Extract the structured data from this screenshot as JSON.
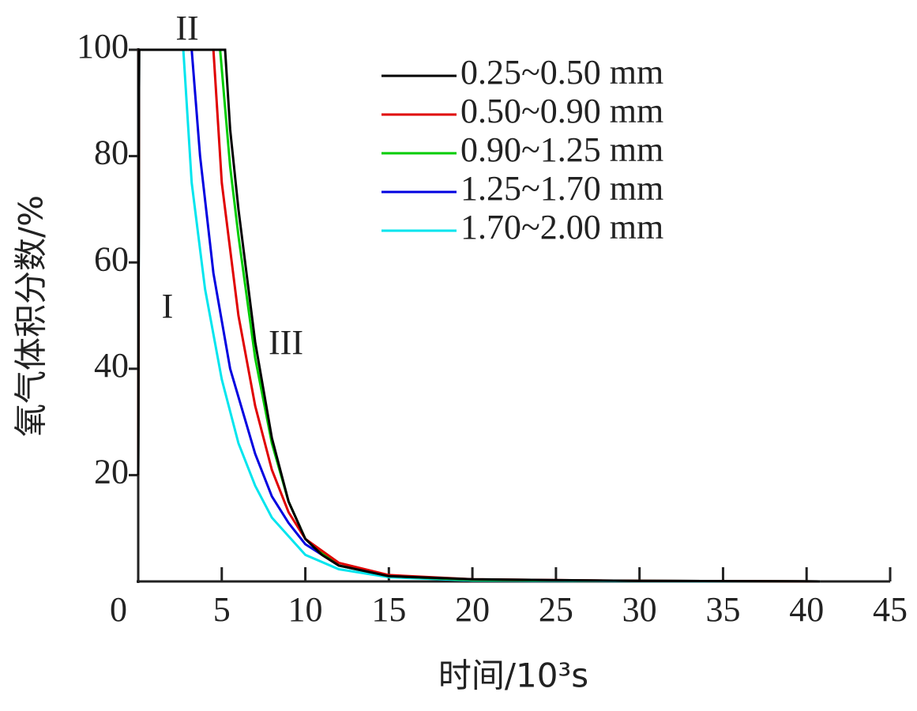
{
  "chart_data": {
    "type": "line",
    "x_label": "时间/10³s",
    "y_label": "氧气体积分数/%",
    "annotations": [
      "I",
      "II",
      "III"
    ],
    "xlim": [
      0,
      45
    ],
    "xticks": [
      0,
      5,
      10,
      15,
      20,
      25,
      30,
      35,
      40,
      45
    ],
    "ylim": [
      0,
      100
    ],
    "yticks": [
      20,
      40,
      60,
      80,
      100
    ],
    "legend": "upper-right",
    "series": [
      {
        "name": "0.25~0.50 mm",
        "color": "#000000",
        "x": [
          0,
          0.05,
          5.2,
          5.5,
          6,
          7,
          8,
          9,
          10,
          11,
          12,
          15,
          20,
          30,
          40.8
        ],
        "values": [
          20,
          100,
          100,
          85,
          70,
          45,
          27,
          15,
          8,
          5,
          3,
          1,
          0.4,
          0.1,
          0
        ]
      },
      {
        "name": "0.50~0.90 mm",
        "color": "#e00000",
        "x": [
          0,
          0.05,
          4.5,
          5,
          6,
          7,
          8,
          9,
          10,
          12,
          15,
          20,
          30,
          40.8
        ],
        "values": [
          20,
          100,
          100,
          75,
          50,
          33,
          21,
          13,
          8,
          3.5,
          1.2,
          0.4,
          0.1,
          0
        ]
      },
      {
        "name": "0.90~1.25 mm",
        "color": "#00cc00",
        "x": [
          0,
          0.05,
          4.9,
          5.5,
          6,
          7,
          8,
          9,
          10,
          12,
          15,
          20,
          30,
          40.8
        ],
        "values": [
          20,
          100,
          100,
          78,
          65,
          42,
          26,
          15,
          8,
          3,
          1,
          0.3,
          0.1,
          0
        ]
      },
      {
        "name": "1.25~1.70 mm",
        "color": "#0000e0",
        "x": [
          0,
          0.05,
          3.2,
          3.7,
          4.5,
          5.5,
          7,
          8,
          9,
          10,
          12,
          15,
          20,
          30,
          40.8
        ],
        "values": [
          20,
          100,
          100,
          80,
          58,
          40,
          24,
          16,
          11,
          7,
          3,
          1,
          0.3,
          0.1,
          0
        ]
      },
      {
        "name": "1.70~2.00 mm",
        "color": "#00e5ee",
        "x": [
          0,
          0.05,
          2.7,
          3.2,
          4,
          5,
          6,
          7,
          8,
          10,
          12,
          15,
          20,
          30,
          40.8
        ],
        "values": [
          20,
          100,
          100,
          75,
          55,
          38,
          26,
          18,
          12,
          5,
          2.3,
          0.8,
          0.2,
          0.05,
          0
        ]
      }
    ]
  }
}
